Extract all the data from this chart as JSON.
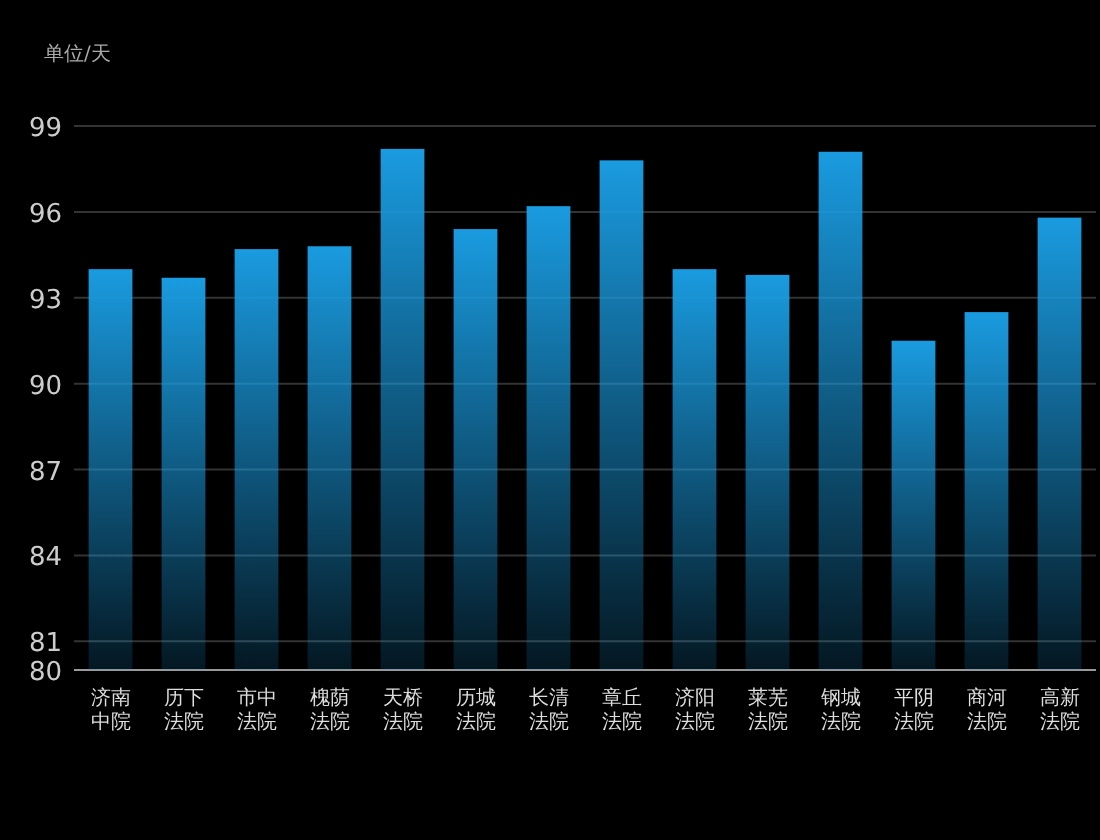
{
  "chart_data": {
    "type": "bar",
    "ylabel": "单位/天",
    "categories": [
      "济南中院",
      "历下法院",
      "市中法院",
      "槐荫法院",
      "天桥法院",
      "历城法院",
      "长清法院",
      "章丘法院",
      "济阳法院",
      "莱芜法院",
      "钢城法院",
      "平阴法院",
      "商河法院",
      "高新法院"
    ],
    "values": [
      94.0,
      93.7,
      94.7,
      94.8,
      98.2,
      95.4,
      96.2,
      97.8,
      94.0,
      93.8,
      98.1,
      91.5,
      92.5,
      95.8
    ],
    "color": "#1a9be0",
    "ylim": [
      80,
      99
    ],
    "yticks": [
      80,
      81,
      84,
      87,
      90,
      93,
      96,
      99
    ],
    "grid": "y"
  }
}
